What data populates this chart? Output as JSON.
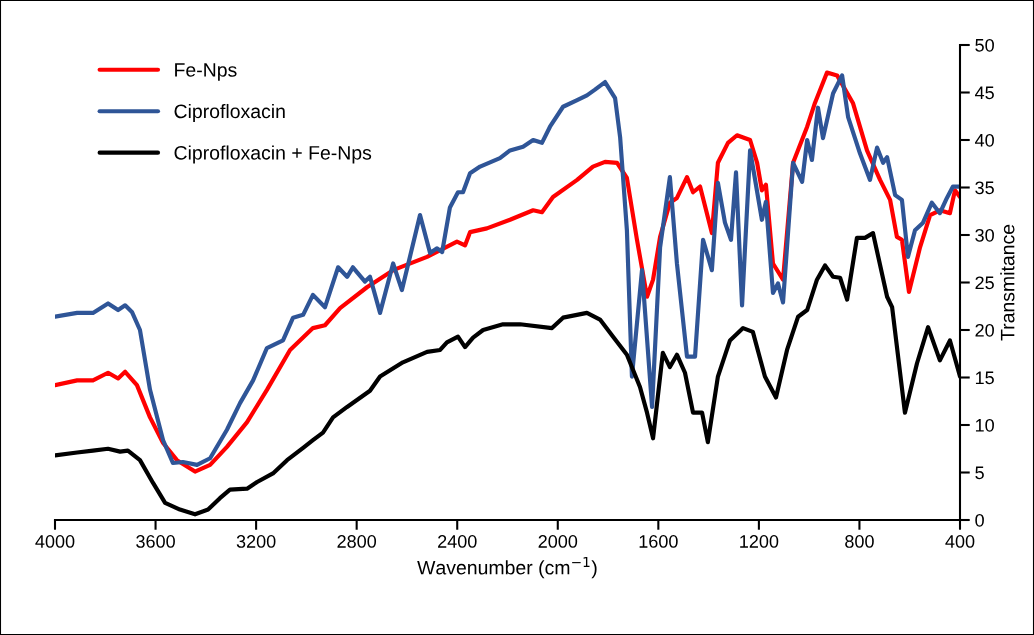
{
  "chart_data": {
    "type": "line",
    "xlabel": "Wavenumber (cm$^{−1}$)",
    "ylabel": "Transmitance",
    "xlim": [
      4000,
      400
    ],
    "xticks": [
      4000,
      3600,
      3200,
      2800,
      2400,
      2000,
      1600,
      1200,
      800,
      400
    ],
    "ylim": [
      0,
      50
    ],
    "yticks": [
      0,
      5,
      10,
      15,
      20,
      25,
      30,
      35,
      40,
      45,
      50
    ],
    "grid": false,
    "legend": "top left",
    "line_style": "solid",
    "marker": "none",
    "series": [
      {
        "name": "Fe-Nps",
        "color": "#ff0000",
        "x": [
          4000,
          3912,
          3849,
          3789,
          3749,
          3721,
          3674,
          3622,
          3570,
          3515,
          3443,
          3383,
          3316,
          3236,
          3157,
          3065,
          2974,
          2926,
          2866,
          2759,
          2655,
          2520,
          2401,
          2369,
          2349,
          2282,
          2190,
          2098,
          2063,
          2019,
          1923,
          1860,
          1812,
          1764,
          1725,
          1685,
          1645,
          1621,
          1593,
          1554,
          1526,
          1486,
          1462,
          1434,
          1387,
          1363,
          1323,
          1287,
          1235,
          1207,
          1188,
          1172,
          1144,
          1104,
          1064,
          1008,
          977,
          929,
          889,
          826,
          770,
          718,
          678,
          651,
          631,
          603,
          559,
          519,
          480,
          440,
          420,
          400
        ],
        "values": [
          14.2,
          14.7,
          14.7,
          15.5,
          14.9,
          15.6,
          14.2,
          10.8,
          8.1,
          6.3,
          5.1,
          5.8,
          7.7,
          10.3,
          13.7,
          17.9,
          20.2,
          20.5,
          22.3,
          24.5,
          26.3,
          27.7,
          29.3,
          28.9,
          30.3,
          30.7,
          31.6,
          32.6,
          32.4,
          34,
          35.8,
          37.2,
          37.7,
          37.6,
          36,
          29.5,
          23.5,
          25.3,
          29.8,
          33.4,
          33.9,
          36.1,
          34.5,
          35.1,
          30.2,
          37.6,
          39.7,
          40.5,
          40,
          37.6,
          34.7,
          35.3,
          27,
          25.3,
          37.6,
          41.4,
          43.9,
          47.1,
          46.8,
          43.9,
          38.9,
          35.8,
          33.7,
          29.8,
          29.5,
          24,
          28.7,
          32.1,
          32.6,
          32.3,
          34.7,
          34
        ]
      },
      {
        "name": "Ciprofloxacin",
        "color": "#2f5597",
        "x": [
          4000,
          3912,
          3849,
          3789,
          3749,
          3721,
          3694,
          3662,
          3622,
          3570,
          3531,
          3491,
          3435,
          3383,
          3316,
          3264,
          3212,
          3157,
          3093,
          3053,
          3013,
          2974,
          2926,
          2874,
          2838,
          2815,
          2767,
          2747,
          2707,
          2655,
          2620,
          2548,
          2508,
          2480,
          2460,
          2429,
          2397,
          2377,
          2349,
          2309,
          2230,
          2190,
          2138,
          2098,
          2063,
          2031,
          1979,
          1923,
          1884,
          1852,
          1812,
          1772,
          1752,
          1725,
          1705,
          1665,
          1625,
          1593,
          1554,
          1526,
          1486,
          1454,
          1422,
          1387,
          1363,
          1335,
          1311,
          1291,
          1267,
          1235,
          1188,
          1172,
          1144,
          1124,
          1104,
          1064,
          1028,
          1008,
          989,
          965,
          945,
          905,
          869,
          845,
          798,
          758,
          730,
          706,
          690,
          658,
          631,
          607,
          579,
          547,
          512,
          480,
          452,
          428,
          400
        ],
        "values": [
          21.4,
          21.8,
          21.8,
          22.8,
          22.1,
          22.6,
          21.9,
          20,
          13.7,
          8.4,
          6,
          6.1,
          5.8,
          6.5,
          9.5,
          12.3,
          14.7,
          18.1,
          18.9,
          21.3,
          21.6,
          23.7,
          22.4,
          26.6,
          25.6,
          26.6,
          25.1,
          25.6,
          21.8,
          27,
          24.2,
          32.1,
          28.1,
          28.6,
          28.2,
          32.9,
          34.5,
          34.5,
          36.5,
          37.2,
          38.1,
          38.9,
          39.3,
          40,
          39.7,
          41.4,
          43.5,
          44.2,
          44.7,
          45.3,
          46.1,
          44.4,
          40.3,
          30.5,
          15.1,
          26.3,
          11.9,
          28.7,
          36.1,
          27,
          17.2,
          17.2,
          29.5,
          26.3,
          35.5,
          31.3,
          29.5,
          36.6,
          22.6,
          38.9,
          31.6,
          33.5,
          23.9,
          24.9,
          22.9,
          37.6,
          35.6,
          40,
          37.9,
          43.4,
          40.2,
          44.9,
          46.8,
          42.4,
          38.6,
          35.8,
          39.2,
          37.6,
          38.2,
          34.2,
          33.7,
          27.7,
          30.5,
          31.3,
          33.4,
          32.3,
          33.9,
          35.1,
          35.1
        ]
      },
      {
        "name": "Ciprofloxacin + Fe-Nps",
        "color": "#000000",
        "x": [
          4000,
          3912,
          3849,
          3789,
          3741,
          3710,
          3662,
          3610,
          3562,
          3503,
          3443,
          3391,
          3344,
          3304,
          3236,
          3196,
          3133,
          3077,
          3013,
          2974,
          2934,
          2894,
          2838,
          2747,
          2707,
          2616,
          2520,
          2468,
          2441,
          2397,
          2369,
          2337,
          2297,
          2218,
          2150,
          2023,
          1979,
          1884,
          1832,
          1780,
          1725,
          1673,
          1645,
          1621,
          1582,
          1554,
          1526,
          1494,
          1462,
          1426,
          1403,
          1363,
          1315,
          1263,
          1224,
          1176,
          1132,
          1088,
          1044,
          1008,
          969,
          937,
          905,
          877,
          849,
          810,
          778,
          746,
          690,
          670,
          619,
          571,
          527,
          480,
          440,
          400
        ],
        "values": [
          6.8,
          7.1,
          7.3,
          7.5,
          7.2,
          7.3,
          6.3,
          3.9,
          1.8,
          1.1,
          0.6,
          1.1,
          2.3,
          3.2,
          3.3,
          4,
          4.9,
          6.3,
          7.6,
          8.4,
          9.2,
          10.8,
          11.9,
          13.6,
          15.1,
          16.6,
          17.7,
          17.9,
          18.7,
          19.3,
          18.2,
          19.2,
          20,
          20.6,
          20.6,
          20.2,
          21.3,
          21.8,
          21.1,
          19.3,
          17.4,
          14,
          11.3,
          8.6,
          17.6,
          16.1,
          17.4,
          15.5,
          11.3,
          11.3,
          8.2,
          15.1,
          18.9,
          20.2,
          19.8,
          15.1,
          12.9,
          17.9,
          21.4,
          22.1,
          25.3,
          26.8,
          25.6,
          25.5,
          23.2,
          29.7,
          29.7,
          30.2,
          23.5,
          22.4,
          11.3,
          16.5,
          20.3,
          16.8,
          18.9,
          15.1
        ]
      }
    ]
  }
}
